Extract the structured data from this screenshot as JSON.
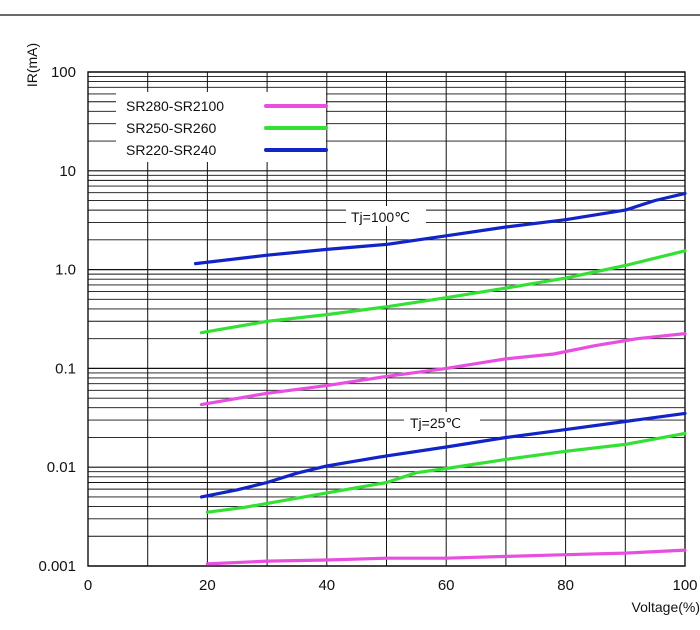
{
  "chart_data": {
    "type": "line",
    "xlabel": "Voltage(%)",
    "ylabel": "IR(mA)",
    "xlim": [
      0,
      100
    ],
    "ylim": [
      0.001,
      100
    ],
    "yscale": "log",
    "x_ticks": [
      "0",
      "20",
      "40",
      "60",
      "80",
      "100"
    ],
    "y_ticks": [
      "100",
      "10",
      "1.0",
      "0.1",
      "0.01",
      "0.001"
    ],
    "grid": true,
    "legend_position": "top-left",
    "annotations": [
      "Tj=100℃",
      "Tj=25℃"
    ],
    "colors": {
      "SR280-SR2100": "#e84fe0",
      "SR250-SR260": "#33e033",
      "SR220-SR240": "#1024c8"
    },
    "series": [
      {
        "name": "SR280-SR2100",
        "condition": "Tj=100℃",
        "x": [
          19,
          30,
          40,
          50,
          60,
          70,
          78,
          85,
          92,
          100
        ],
        "y": [
          0.043,
          0.056,
          0.067,
          0.083,
          0.1,
          0.125,
          0.14,
          0.17,
          0.2,
          0.225
        ]
      },
      {
        "name": "SR250-SR260",
        "condition": "Tj=100℃",
        "x": [
          19,
          30,
          40,
          50,
          60,
          70,
          80,
          90,
          100
        ],
        "y": [
          0.23,
          0.3,
          0.35,
          0.42,
          0.52,
          0.65,
          0.82,
          1.1,
          1.55
        ]
      },
      {
        "name": "SR220-SR240",
        "condition": "Tj=100℃",
        "x": [
          18,
          30,
          40,
          50,
          60,
          70,
          80,
          90,
          95,
          100
        ],
        "y": [
          1.15,
          1.4,
          1.6,
          1.8,
          2.2,
          2.7,
          3.2,
          4.0,
          5.0,
          5.9
        ]
      },
      {
        "name": "SR220-SR240",
        "condition": "Tj=25℃",
        "x": [
          19,
          25,
          30,
          35,
          40,
          50,
          60,
          70,
          80,
          90,
          100
        ],
        "y": [
          0.005,
          0.0059,
          0.007,
          0.0087,
          0.0103,
          0.013,
          0.016,
          0.02,
          0.024,
          0.029,
          0.035
        ]
      },
      {
        "name": "SR250-SR260",
        "condition": "Tj=25℃",
        "x": [
          20,
          26,
          30,
          40,
          50,
          55,
          60,
          70,
          80,
          90,
          100
        ],
        "y": [
          0.0035,
          0.0039,
          0.0043,
          0.0055,
          0.007,
          0.0088,
          0.0097,
          0.012,
          0.0145,
          0.017,
          0.022
        ]
      },
      {
        "name": "SR280-SR2100",
        "condition": "Tj=25℃",
        "x": [
          20,
          30,
          40,
          50,
          60,
          70,
          80,
          90,
          100
        ],
        "y": [
          0.00105,
          0.00112,
          0.00115,
          0.0012,
          0.0012,
          0.00125,
          0.0013,
          0.00135,
          0.00145
        ]
      }
    ]
  }
}
